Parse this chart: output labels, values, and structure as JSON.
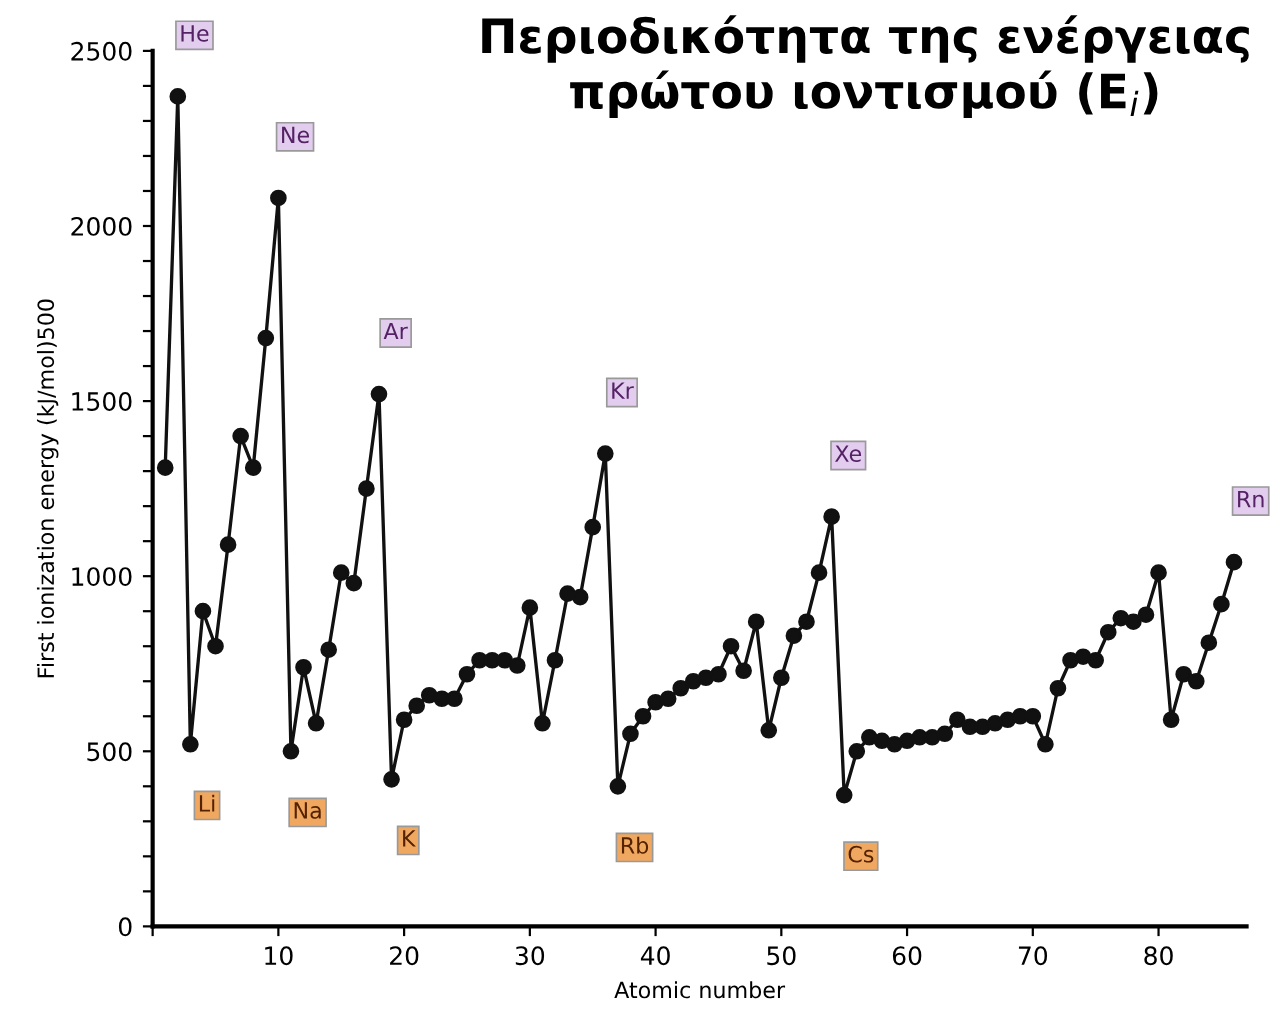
{
  "chart_data": {
    "type": "line",
    "title": "Περιοδικότητα της ενέργειας\nπρώτου ιοντισμού (E$_{i}$)",
    "xlabel": "Atomic number",
    "ylabel": "First ionization energy (kJ/mol)500",
    "x": [
      1,
      2,
      3,
      4,
      5,
      6,
      7,
      8,
      9,
      10,
      11,
      12,
      13,
      14,
      15,
      16,
      17,
      18,
      19,
      20,
      21,
      22,
      23,
      24,
      25,
      26,
      27,
      28,
      29,
      30,
      31,
      32,
      33,
      34,
      35,
      36,
      37,
      38,
      39,
      40,
      41,
      42,
      43,
      44,
      45,
      46,
      47,
      48,
      49,
      50,
      51,
      52,
      53,
      54,
      55,
      56,
      57,
      58,
      59,
      60,
      61,
      62,
      63,
      64,
      65,
      66,
      67,
      68,
      69,
      70,
      71,
      72,
      73,
      74,
      75,
      76,
      77,
      78,
      79,
      80,
      81,
      82,
      83,
      84,
      85,
      86
    ],
    "series": [
      {
        "color": "#111111",
        "values": [
          1310,
          2370,
          520,
          900,
          800,
          1090,
          1400,
          1310,
          1680,
          2080,
          500,
          740,
          580,
          790,
          1010,
          980,
          1250,
          1520,
          420,
          590,
          630,
          660,
          650,
          650,
          720,
          760,
          760,
          760,
          745,
          910,
          580,
          760,
          950,
          940,
          1140,
          1350,
          400,
          550,
          600,
          640,
          650,
          680,
          700,
          710,
          720,
          800,
          730,
          870,
          560,
          710,
          830,
          870,
          1010,
          1170,
          375,
          500,
          540,
          530,
          520,
          530,
          540,
          540,
          550,
          590,
          570,
          570,
          580,
          590,
          600,
          600,
          520,
          680,
          760,
          770,
          760,
          840,
          880,
          870,
          890,
          1010,
          590,
          720,
          700,
          810,
          920,
          1040
        ]
      }
    ],
    "annotations": [
      {
        "text": "He",
        "x": 2,
        "y": 2370
      },
      {
        "text": "Ne",
        "x": 10,
        "y": 2080
      },
      {
        "text": "Ar",
        "x": 18,
        "y": 1520
      },
      {
        "text": "Kr",
        "x": 36,
        "y": 1350
      },
      {
        "text": "Xe",
        "x": 54,
        "y": 1170
      },
      {
        "text": "Rn",
        "x": 86,
        "y": 1040
      },
      {
        "text": "Li",
        "x": 3,
        "y": 520
      },
      {
        "text": "Na",
        "x": 11,
        "y": 500
      },
      {
        "text": "K",
        "x": 19,
        "y": 420
      },
      {
        "text": "Rb",
        "x": 37,
        "y": 400
      },
      {
        "text": "Cs",
        "x": 55,
        "y": 375
      }
    ],
    "xlim": [
      0,
      87
    ],
    "xticks": [
      {
        "value": 0,
        "label": null
      },
      10,
      20,
      30,
      40,
      50,
      60,
      70,
      80
    ],
    "ylim": [
      0,
      2500
    ],
    "yticks": [
      0,
      {
        "value": 100,
        "label": null
      },
      {
        "value": 200,
        "label": null
      },
      {
        "value": 300,
        "label": null
      },
      {
        "value": 400,
        "label": null
      },
      500,
      {
        "value": 600,
        "label": null
      },
      {
        "value": 700,
        "label": null
      },
      {
        "value": 800,
        "label": null
      },
      {
        "value": 900,
        "label": null
      },
      1000,
      {
        "value": 1100,
        "label": null
      },
      {
        "value": 1200,
        "label": null
      },
      {
        "value": 1300,
        "label": null
      },
      {
        "value": 1400,
        "label": null
      },
      1500,
      {
        "value": 1600,
        "label": null
      },
      {
        "value": 1700,
        "label": null
      },
      {
        "value": 1800,
        "label": null
      },
      {
        "value": 1900,
        "label": null
      },
      2000,
      {
        "value": 2100,
        "label": null
      },
      {
        "value": 2200,
        "label": null
      },
      {
        "value": 2300,
        "label": null
      },
      {
        "value": 2400,
        "label": null
      },
      2500
    ],
    "marker": "circle",
    "line_style": "solid",
    "grid": false,
    "legend": false
  }
}
